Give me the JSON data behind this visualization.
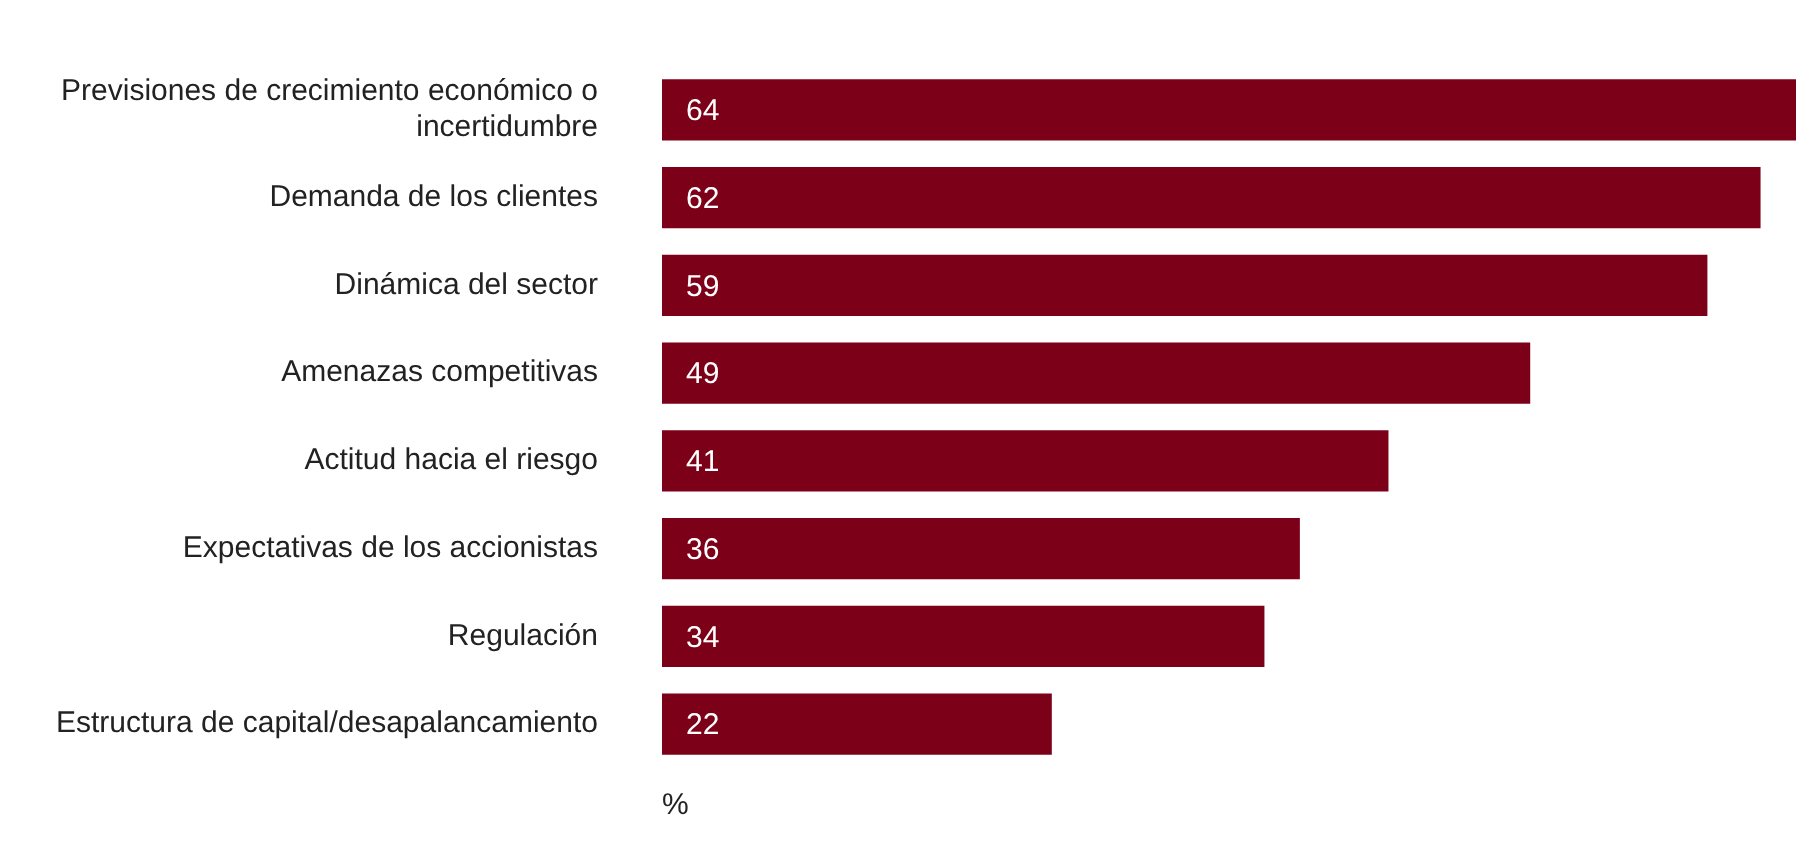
{
  "chart_data": {
    "type": "bar",
    "orientation": "horizontal",
    "xlabel": "%",
    "categories": [
      "Previsiones de crecimiento económico o incertidumbre",
      "Demanda de los clientes",
      "Dinámica del sector",
      "Amenazas competitivas",
      "Actitud hacia el riesgo",
      "Expectativas de los accionistas",
      "Regulación",
      "Estructura de capital/desapalancamiento"
    ],
    "values": [
      64,
      62,
      59,
      49,
      41,
      36,
      34,
      22
    ],
    "color": "#7d0019",
    "data_labels": true,
    "tick_labels": "y",
    "grid": false,
    "legend": false
  }
}
